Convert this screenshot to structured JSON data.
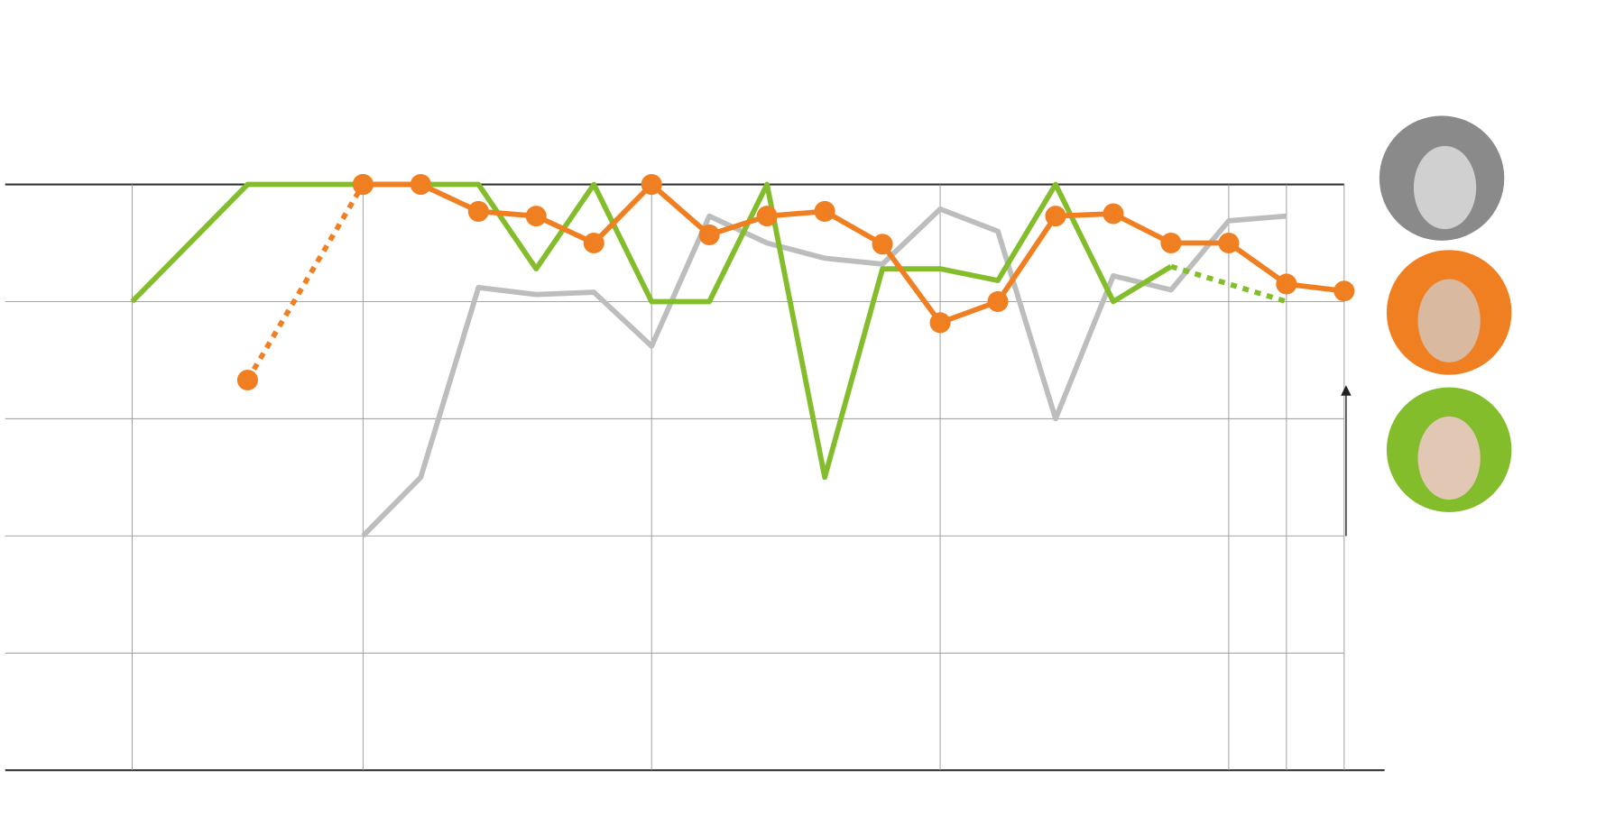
{
  "chart_data": {
    "type": "line",
    "x": [
      0,
      1,
      2,
      3,
      4,
      5,
      6,
      7,
      8,
      9,
      10,
      11,
      12,
      13,
      14,
      15,
      16,
      17,
      18,
      19,
      20,
      21
    ],
    "xlim": [
      -2.2,
      21.7
    ],
    "xticks": [
      0,
      4,
      9,
      14,
      19,
      20,
      21
    ],
    "ylim": [
      0,
      5
    ],
    "yticks": [
      0,
      1,
      2,
      3,
      4,
      5
    ],
    "grid": true,
    "series": [
      {
        "color": "#bcbdbd",
        "style": "solid",
        "markers": false,
        "values": [
          null,
          null,
          null,
          null,
          2,
          2.5,
          4.12,
          4.06,
          4.08,
          3.62,
          4.73,
          4.5,
          4.37,
          4.32,
          4.79,
          4.6,
          3,
          4.22,
          4.1,
          4.69,
          4.73,
          null
        ]
      },
      {
        "color": "#84bd2b",
        "style": "solid",
        "markers": false,
        "values": [
          4,
          4.5,
          5,
          5,
          5,
          5,
          5,
          4.28,
          5,
          4,
          4,
          5,
          2.5,
          4.28,
          4.28,
          4.18,
          5,
          4,
          4.3,
          null,
          null,
          null
        ]
      },
      {
        "color": "#84bd2b",
        "style": "dotted",
        "markers": false,
        "x": [
          18,
          20
        ],
        "values": [
          4.3,
          4
        ]
      },
      {
        "color": "#f07f22",
        "style": "dotted",
        "markers": true,
        "x": [
          2,
          4
        ],
        "values": [
          3.33,
          5
        ]
      },
      {
        "color": "#f07f22",
        "style": "solid",
        "markers": true,
        "values": [
          null,
          null,
          null,
          null,
          5,
          5,
          4.77,
          4.73,
          4.5,
          5,
          4.57,
          4.73,
          4.77,
          4.49,
          3.82,
          4,
          4.73,
          4.75,
          4.5,
          4.5,
          4.15,
          4.09
        ]
      }
    ]
  }
}
